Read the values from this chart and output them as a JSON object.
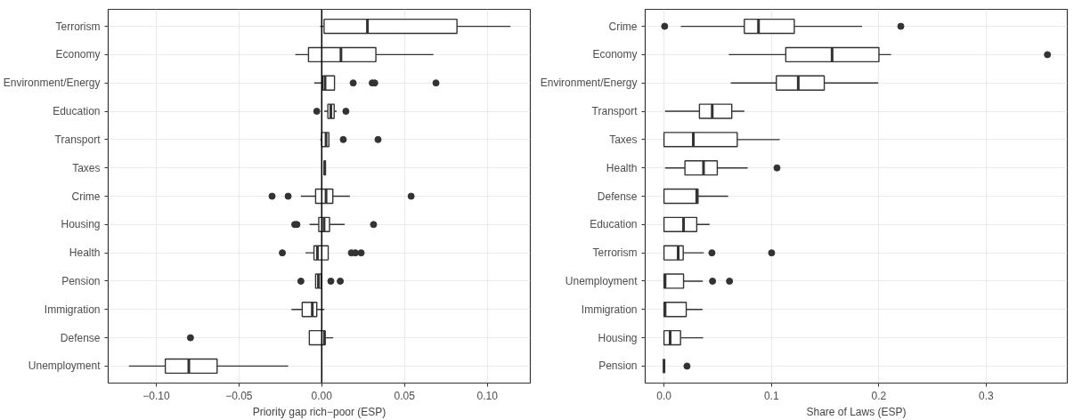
{
  "chart_data": [
    {
      "type": "box",
      "orientation": "horizontal",
      "xlabel": "Priority gap rich−poor (ESP)",
      "grid": true,
      "categories": [
        "Terrorism",
        "Economy",
        "Environment/Energy",
        "Education",
        "Transport",
        "Taxes",
        "Crime",
        "Housing",
        "Health",
        "Pension",
        "Immigration",
        "Defense",
        "Unemployment"
      ],
      "xlim": [
        -0.129,
        0.126
      ],
      "xticks": [
        {
          "value": -0.1,
          "label": "−0.10"
        },
        {
          "value": -0.05,
          "label": "−0.05"
        },
        {
          "value": 0,
          "label": "0.00"
        },
        {
          "value": 0.05,
          "label": "0.05"
        },
        {
          "value": 0.1,
          "label": "0.10"
        }
      ],
      "ref_lines": [
        {
          "axis": "x",
          "value": 0,
          "color": "#000000"
        }
      ],
      "series": [
        {
          "color": "#333333",
          "boxes": [
            {
              "low": -0.001,
              "q1": 0.0014,
              "median": 0.0276,
              "q3": 0.0817,
              "high": 0.114
            },
            {
              "low": -0.016,
              "q1": -0.008,
              "median": 0.0116,
              "q3": 0.0327,
              "high": 0.0675
            },
            {
              "low": -0.0045,
              "q1": 0.0006,
              "median": 0.002,
              "q3": 0.0077,
              "high": 0.0077,
              "outliers": [
                0.019,
                0.0305,
                0.032,
                0.069
              ]
            },
            {
              "low": 0.0015,
              "q1": 0.0037,
              "median": 0.0055,
              "q3": 0.0075,
              "high": 0.009,
              "outliers": [
                -0.003,
                0.0146
              ]
            },
            {
              "low": -0.001,
              "q1": 0.0,
              "median": 0.0026,
              "q3": 0.0043,
              "high": 0.0045,
              "outliers": [
                0.013,
                0.034
              ]
            },
            {
              "low": 0.0012,
              "q1": 0.0014,
              "median": 0.0018,
              "q3": 0.0022,
              "high": 0.0024
            },
            {
              "low": -0.0126,
              "q1": -0.0037,
              "median": 0.0026,
              "q3": 0.0067,
              "high": 0.017,
              "outliers": [
                -0.03,
                -0.0203,
                0.054
              ]
            },
            {
              "low": -0.0073,
              "q1": -0.0018,
              "median": 0.0014,
              "q3": 0.0047,
              "high": 0.0138,
              "outliers": [
                -0.0163,
                -0.015,
                0.0313
              ]
            },
            {
              "low": -0.0098,
              "q1": -0.0047,
              "median": -0.0026,
              "q3": 0.0039,
              "high": 0.0039,
              "outliers": [
                -0.0238,
                0.0179,
                0.0203,
                0.0238
              ]
            },
            {
              "low": -0.0037,
              "q1": -0.0037,
              "median": -0.002,
              "q3": -0.0004,
              "high": -0.0004,
              "outliers": [
                -0.0126,
                0.0055,
                0.0112
              ]
            },
            {
              "low": -0.0183,
              "q1": -0.0118,
              "median": -0.0057,
              "q3": -0.003,
              "high": 0.0016
            },
            {
              "low": -0.0075,
              "q1": -0.0075,
              "median": 0.0016,
              "q3": 0.002,
              "high": 0.0069,
              "outliers": [
                -0.0793
              ]
            },
            {
              "low": -0.1165,
              "q1": -0.0945,
              "median": -0.0803,
              "q3": -0.0632,
              "high": -0.0203
            }
          ]
        }
      ]
    },
    {
      "type": "box",
      "orientation": "horizontal",
      "xlabel": "Share of Laws (ESP)",
      "grid": true,
      "categories": [
        "Crime",
        "Economy",
        "Environment/Energy",
        "Transport",
        "Taxes",
        "Health",
        "Defense",
        "Education",
        "Terrorism",
        "Unemployment",
        "Immigration",
        "Housing",
        "Pension"
      ],
      "xlim": [
        -0.0175,
        0.3755
      ],
      "xticks": [
        {
          "value": 0,
          "label": "0.0"
        },
        {
          "value": 0.1,
          "label": "0.1"
        },
        {
          "value": 0.2,
          "label": "0.2"
        },
        {
          "value": 0.3,
          "label": "0.3"
        }
      ],
      "series": [
        {
          "color": "#333333",
          "boxes": [
            {
              "low": 0.0157,
              "q1": 0.0748,
              "median": 0.088,
              "q3": 0.1213,
              "high": 0.1844,
              "outliers": [
                0.0006,
                0.2205
              ]
            },
            {
              "low": 0.0603,
              "q1": 0.1134,
              "median": 0.1565,
              "q3": 0.2001,
              "high": 0.2114,
              "outliers": [
                0.357
              ]
            },
            {
              "low": 0.0622,
              "q1": 0.1046,
              "median": 0.125,
              "q3": 0.1492,
              "high": 0.1995
            },
            {
              "low": 0.001,
              "q1": 0.033,
              "median": 0.0449,
              "q3": 0.0631,
              "high": 0.0748
            },
            {
              "low": 0.0,
              "q1": 0.0,
              "median": 0.0273,
              "q3": 0.0682,
              "high": 0.1078
            },
            {
              "low": 0.001,
              "q1": 0.0195,
              "median": 0.0368,
              "q3": 0.0496,
              "high": 0.0779,
              "outliers": [
                0.1052
              ]
            },
            {
              "low": 0.0,
              "q1": 0.0,
              "median": 0.0305,
              "q3": 0.0317,
              "high": 0.0597
            },
            {
              "low": 0.0,
              "q1": 0.0,
              "median": 0.0182,
              "q3": 0.0305,
              "high": 0.0424
            },
            {
              "low": 0.0,
              "q1": 0.0,
              "median": 0.0132,
              "q3": 0.0179,
              "high": 0.037,
              "outliers": [
                0.0446,
                0.1002
              ]
            },
            {
              "low": 0.0,
              "q1": 0.0,
              "median": 0.001,
              "q3": 0.0182,
              "high": 0.0361,
              "outliers": [
                0.0452,
                0.061
              ]
            },
            {
              "low": 0.0,
              "q1": 0.0,
              "median": 0.001,
              "q3": 0.0207,
              "high": 0.0358
            },
            {
              "low": 0.0,
              "q1": 0.0,
              "median": 0.0057,
              "q3": 0.0154,
              "high": 0.0364
            },
            {
              "low": 0.0,
              "q1": 0.0,
              "median": 0.0,
              "q3": 0.0,
              "high": 0.0,
              "outliers": [
                0.0214
              ]
            }
          ]
        }
      ]
    }
  ]
}
